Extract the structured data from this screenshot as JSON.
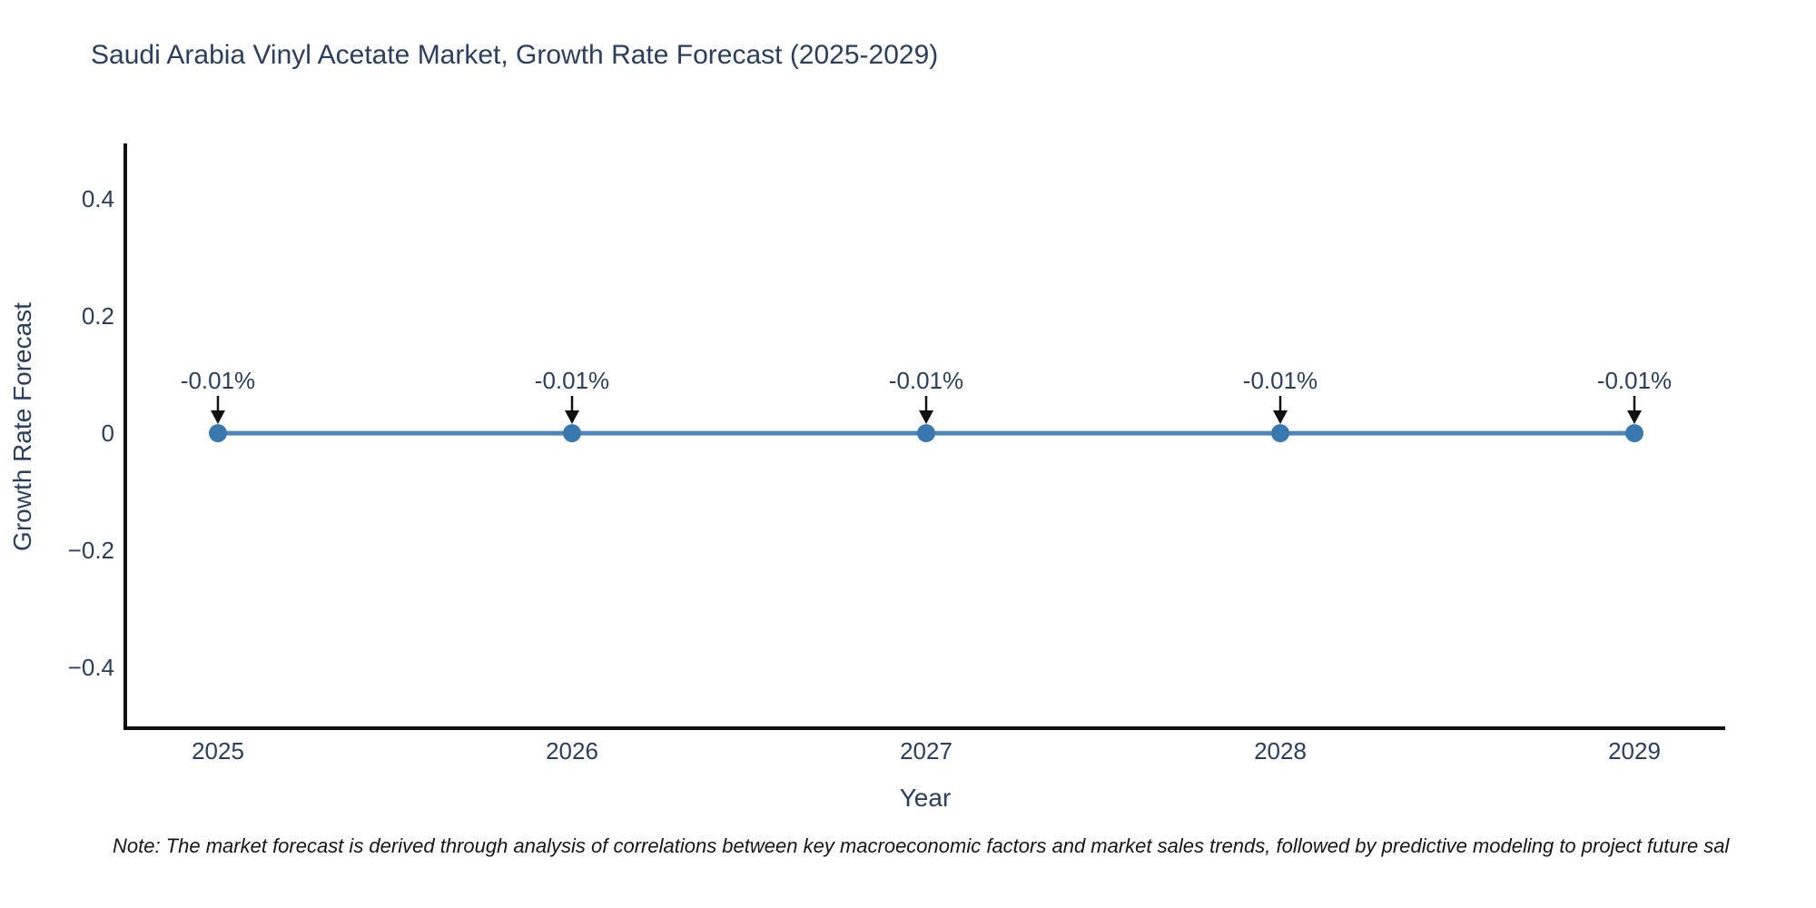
{
  "title": "Saudi Arabia Vinyl Acetate Market, Growth Rate Forecast (2025-2029)",
  "note": "Note: The market forecast is derived through analysis of correlations between key macroeconomic factors and market sales trends, followed by predictive modeling to project future sal",
  "colors": {
    "background": "#ffffff",
    "title_text": "#2a3f5f",
    "tick_text": "#2a3f5f",
    "axis_spine": "#111111",
    "line": "#4e86ba",
    "marker": "#3a78b0",
    "annotation_arrow": "#111111",
    "note_text": "#161616"
  },
  "chart_data": {
    "type": "line",
    "title": "Saudi Arabia Vinyl Acetate Market, Growth Rate Forecast (2025-2029)",
    "x": [
      "2025",
      "2026",
      "2027",
      "2028",
      "2029"
    ],
    "series": [
      {
        "name": "Growth Rate Forecast",
        "values": [
          -0.0001,
          -0.0001,
          -0.0001,
          -0.0001,
          -0.0001
        ],
        "point_labels": [
          "-0.01%",
          "-0.01%",
          "-0.01%",
          "-0.01%",
          "-0.01%"
        ]
      }
    ],
    "xlabel": "Year",
    "ylabel": "Growth Rate Forecast",
    "yticks": [
      0.4,
      0.2,
      0,
      -0.2,
      -0.4
    ],
    "ylim": [
      -0.5,
      0.49
    ],
    "grid": false,
    "legend": false,
    "line_color": "#4e86ba",
    "marker_color": "#3a78b0"
  }
}
